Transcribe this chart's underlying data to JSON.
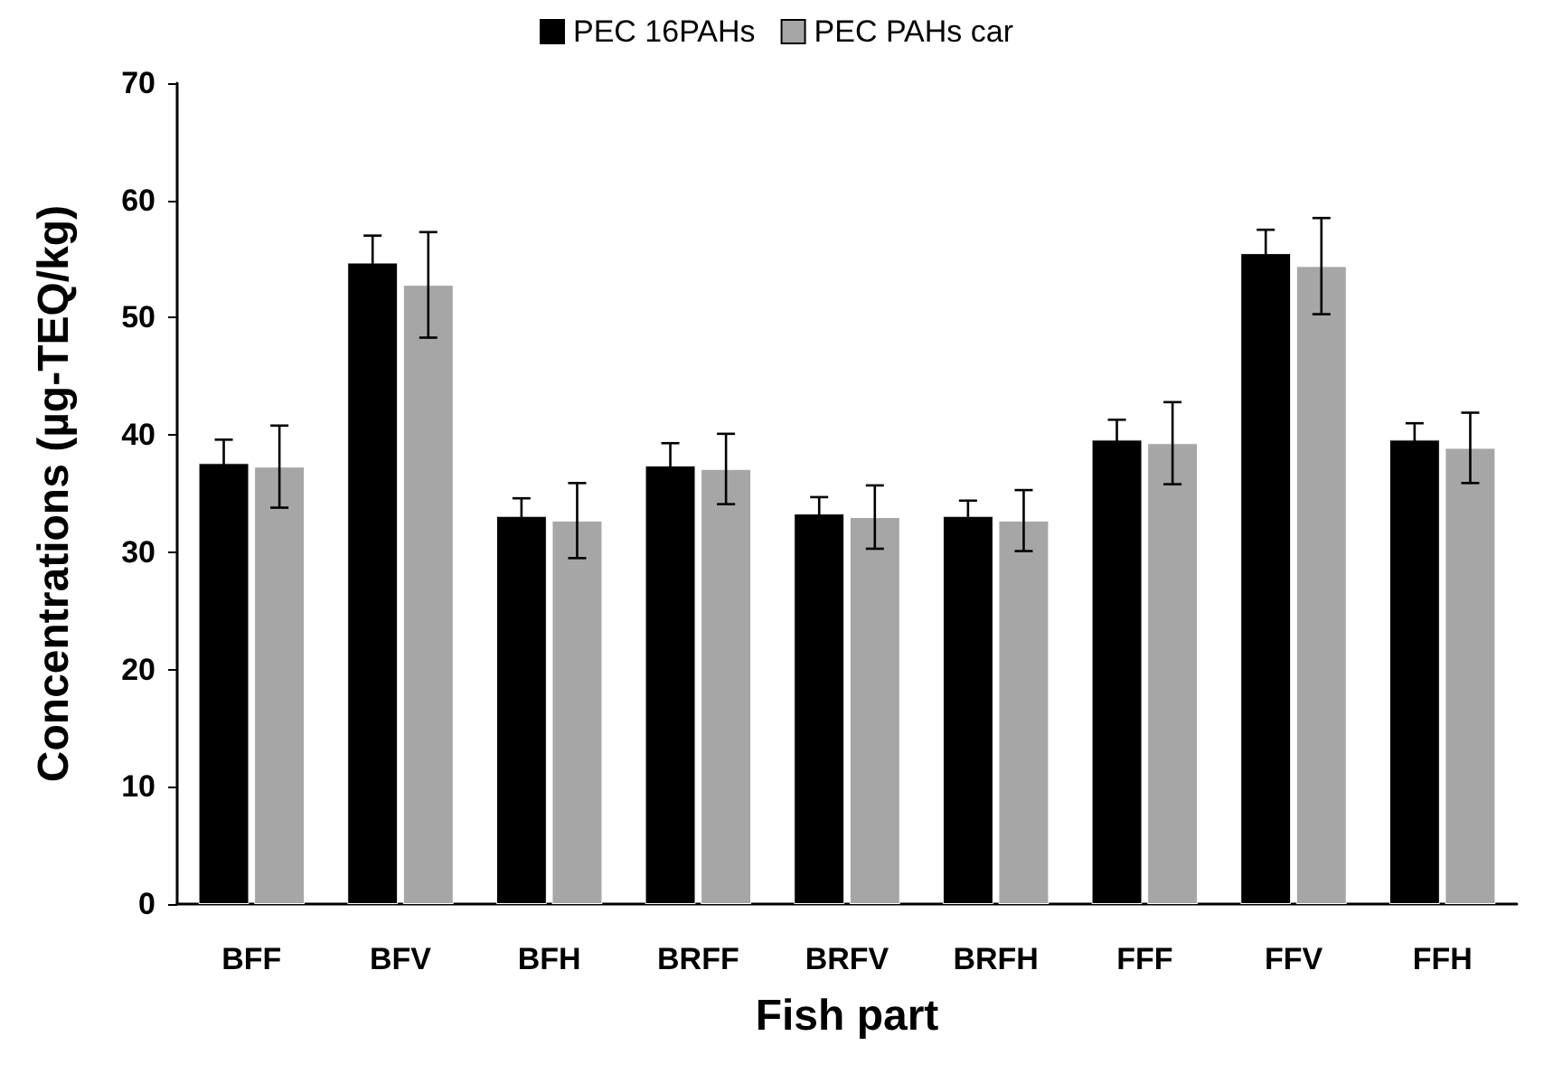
{
  "chart_data": {
    "type": "bar",
    "xlabel": "Fish part",
    "ylabel": "Concentrations (µg-TEQ/kg)",
    "categories": [
      "BFF",
      "BFV",
      "BFH",
      "BRFF",
      "BRFV",
      "BRFH",
      "FFF",
      "FFV",
      "FFH"
    ],
    "series": [
      {
        "name": "PEC 16PAHs",
        "color": "#000000",
        "values": [
          37.6,
          54.7,
          33.1,
          37.4,
          33.3,
          33.1,
          39.6,
          55.5,
          39.6
        ],
        "errors": [
          2,
          2.3,
          1.5,
          1.9,
          1.4,
          1.3,
          1.7,
          2,
          1.4
        ]
      },
      {
        "name": "PEC PAHs car",
        "color": "#a6a6a6",
        "values": [
          37.3,
          52.8,
          32.7,
          37.1,
          33,
          32.7,
          39.3,
          54.4,
          38.9
        ],
        "errors": [
          3.5,
          4.5,
          3.2,
          3,
          2.7,
          2.6,
          3.5,
          4.1,
          3
        ]
      }
    ],
    "ylim": [
      0,
      70
    ],
    "yticks": [
      0,
      10,
      20,
      30,
      40,
      50,
      60,
      70
    ],
    "grid": false,
    "legend": "top"
  }
}
